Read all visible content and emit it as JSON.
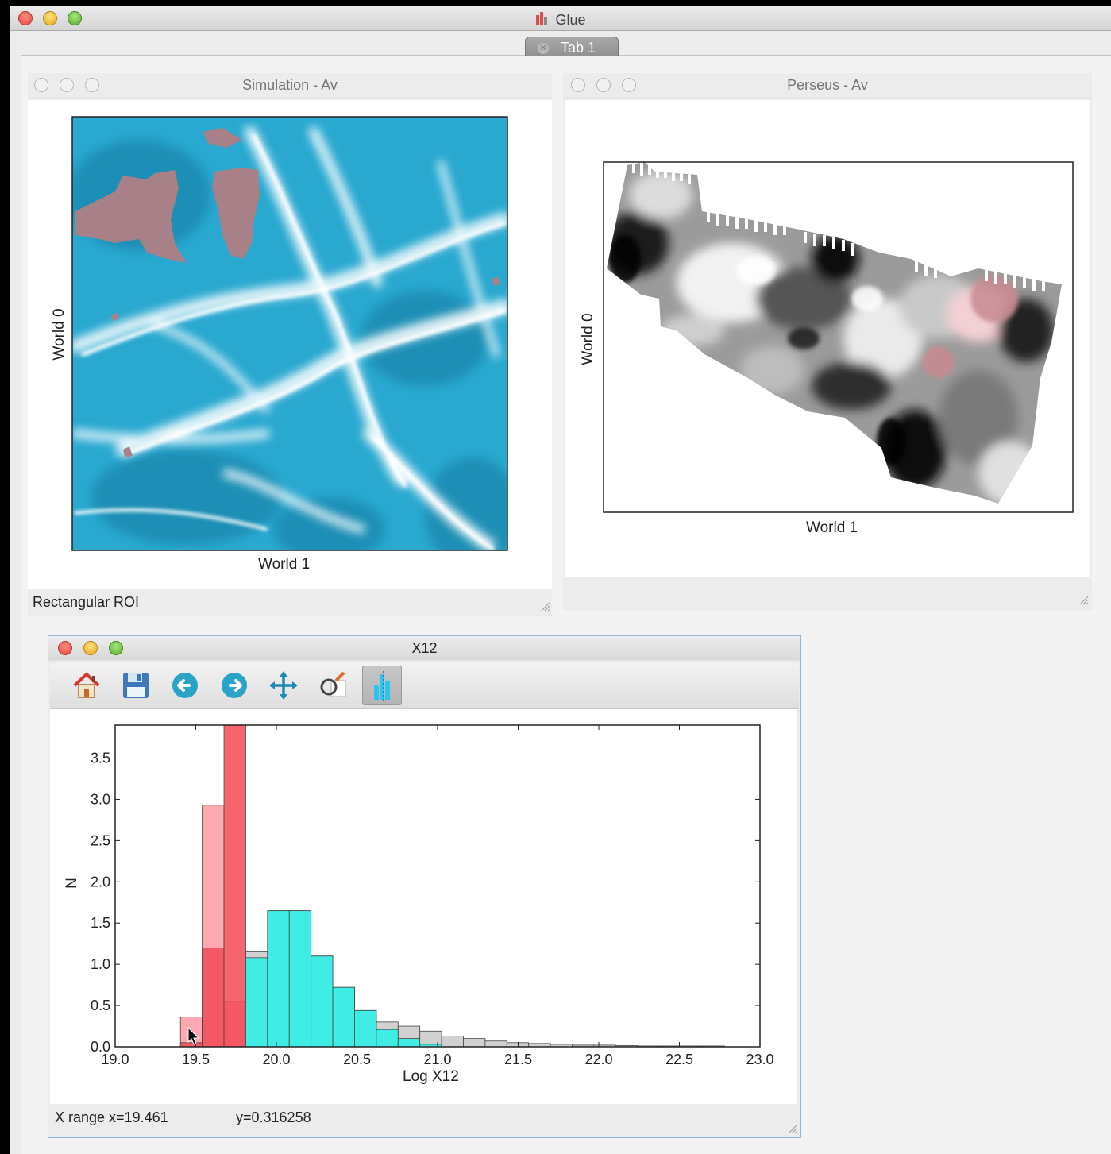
{
  "app": {
    "title": "Glue"
  },
  "tabs": [
    {
      "label": "Tab 1"
    }
  ],
  "windows": {
    "simulation": {
      "title": "Simulation - Av",
      "xlabel": "World 1",
      "ylabel": "World 0",
      "status": "Rectangular ROI",
      "colormap_color": "#29a8d0",
      "subset_color": "#a78088"
    },
    "perseus": {
      "title": "Perseus - Av",
      "xlabel": "World 1",
      "ylabel": "World 0",
      "subset_color": "#c98a92"
    },
    "histogram": {
      "title": "X12",
      "toolbar": [
        {
          "icon": "home-icon"
        },
        {
          "icon": "save-icon"
        },
        {
          "icon": "back-arrow-icon"
        },
        {
          "icon": "forward-arrow-icon"
        },
        {
          "icon": "pan-icon"
        },
        {
          "icon": "zoom-icon"
        },
        {
          "icon": "histogram-roi-icon",
          "active": true
        }
      ],
      "status": {
        "x_part": "X range x=19.461",
        "y_part": "y=0.316258"
      }
    }
  },
  "chart_data": {
    "type": "bar",
    "title": "",
    "xlabel": "Log X12",
    "ylabel": "N",
    "xlim": [
      19.0,
      23.0
    ],
    "ylim": [
      0,
      3.9
    ],
    "xticks": [
      "19.0",
      "19.5",
      "20.0",
      "20.5",
      "21.0",
      "21.5",
      "22.0",
      "22.5",
      "23.0"
    ],
    "yticks": [
      "0.0",
      "0.5",
      "1.0",
      "1.5",
      "2.0",
      "2.5",
      "3.0",
      "3.5"
    ],
    "bin_width": 0.135,
    "series": [
      {
        "name": "",
        "color": "#cfcfcf",
        "x": [
          19.81,
          19.945,
          20.08,
          20.215,
          20.35,
          20.485,
          20.62,
          20.755,
          20.89,
          21.025,
          21.16,
          21.295,
          21.43,
          21.565,
          21.7,
          21.835,
          21.97,
          22.105,
          22.24,
          22.375,
          22.51,
          22.645
        ],
        "values": [
          1.15,
          1.65,
          1.65,
          1.1,
          0.72,
          0.44,
          0.3,
          0.25,
          0.19,
          0.13,
          0.1,
          0.07,
          0.05,
          0.04,
          0.03,
          0.02,
          0.02,
          0.015,
          0.01,
          0.01,
          0.01,
          0.01
        ]
      },
      {
        "name": "",
        "color": "#ff9aa6",
        "x": [
          19.405,
          19.54,
          19.675
        ],
        "values": [
          0.36,
          2.93,
          0.55
        ]
      },
      {
        "name": "",
        "color": "#f44a55",
        "x": [
          19.405,
          19.54,
          19.675
        ],
        "values": [
          0.05,
          1.2,
          3.9
        ]
      },
      {
        "name": "",
        "color": "#2ff0e6",
        "x": [
          19.81,
          19.945,
          20.08,
          20.215,
          20.35,
          20.485,
          20.62,
          20.755,
          20.89
        ],
        "values": [
          1.08,
          1.65,
          1.65,
          1.1,
          0.72,
          0.44,
          0.21,
          0.1,
          0.03
        ]
      }
    ]
  }
}
